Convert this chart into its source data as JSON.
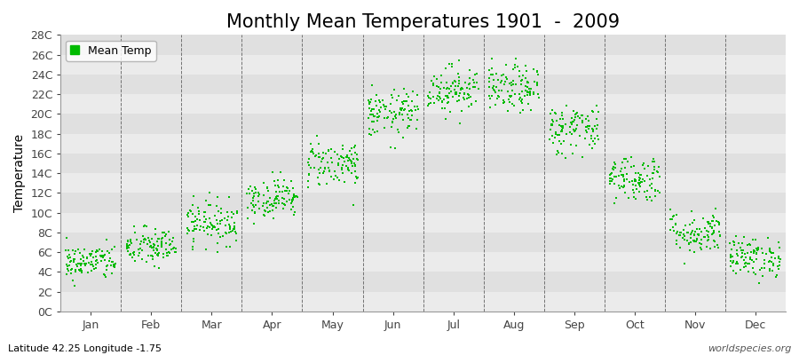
{
  "title": "Monthly Mean Temperatures 1901  -  2009",
  "ylabel": "Temperature",
  "ytick_labels": [
    "0C",
    "2C",
    "4C",
    "6C",
    "8C",
    "10C",
    "12C",
    "14C",
    "16C",
    "18C",
    "20C",
    "22C",
    "24C",
    "26C",
    "28C"
  ],
  "ytick_values": [
    0,
    2,
    4,
    6,
    8,
    10,
    12,
    14,
    16,
    18,
    20,
    22,
    24,
    26,
    28
  ],
  "ylim": [
    0,
    28
  ],
  "months": [
    "Jan",
    "Feb",
    "Mar",
    "Apr",
    "May",
    "Jun",
    "Jul",
    "Aug",
    "Sep",
    "Oct",
    "Nov",
    "Dec"
  ],
  "n_years": 109,
  "mean_temps": [
    5.0,
    6.5,
    9.0,
    11.5,
    15.0,
    20.0,
    22.5,
    22.5,
    18.5,
    13.5,
    8.0,
    5.5
  ],
  "std_temps": [
    0.9,
    1.0,
    1.1,
    1.0,
    1.2,
    1.2,
    1.2,
    1.2,
    1.3,
    1.2,
    1.1,
    1.0
  ],
  "dot_color": "#00BB00",
  "dot_size": 3,
  "bg_color_light": "#EBEBEB",
  "bg_color_dark": "#DCDCDC",
  "plot_bg": "#F0F0F0",
  "legend_label": "Mean Temp",
  "footer_left": "Latitude 42.25 Longitude -1.75",
  "footer_right": "worldspecies.org",
  "title_fontsize": 15,
  "axis_fontsize": 9,
  "footer_fontsize": 8
}
